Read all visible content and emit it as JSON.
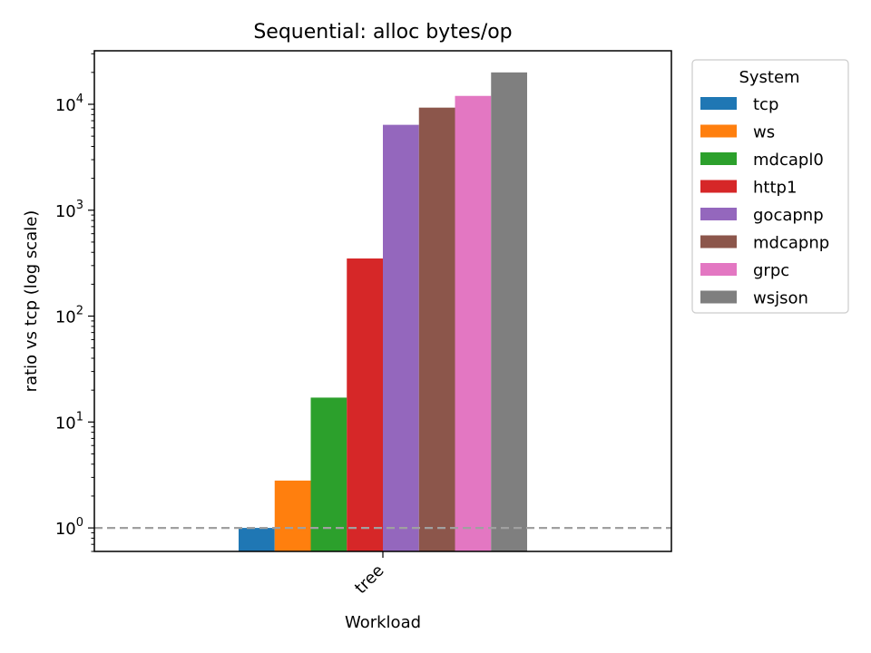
{
  "chart_data": {
    "type": "bar",
    "title": "Sequential: alloc bytes/op",
    "xlabel": "Workload",
    "ylabel": "ratio vs tcp (log scale)",
    "yscale": "log",
    "ylim": [
      0.6,
      32000
    ],
    "categories": [
      "tree"
    ],
    "reference_line": {
      "y": 1,
      "style": "dashed",
      "color": "#a0a0a0"
    },
    "legend": {
      "title": "System",
      "placement": "outside-right-top"
    },
    "y_ticks": [
      {
        "value": 1,
        "base": "10",
        "exp": "0"
      },
      {
        "value": 10,
        "base": "10",
        "exp": "1"
      },
      {
        "value": 100,
        "base": "10",
        "exp": "2"
      },
      {
        "value": 1000,
        "base": "10",
        "exp": "3"
      },
      {
        "value": 10000,
        "base": "10",
        "exp": "4"
      }
    ],
    "series": [
      {
        "name": "tcp",
        "color": "#1f77b4",
        "values": [
          1.0
        ]
      },
      {
        "name": "ws",
        "color": "#ff7f0e",
        "values": [
          2.8
        ]
      },
      {
        "name": "mdcapl0",
        "color": "#2ca02c",
        "values": [
          17
        ]
      },
      {
        "name": "http1",
        "color": "#d62728",
        "values": [
          350
        ]
      },
      {
        "name": "gocapnp",
        "color": "#9467bd",
        "values": [
          6400
        ]
      },
      {
        "name": "mdcapnp",
        "color": "#8c564b",
        "values": [
          9300
        ]
      },
      {
        "name": "grpc",
        "color": "#e377c2",
        "values": [
          12000
        ]
      },
      {
        "name": "wsjson",
        "color": "#7f7f7f",
        "values": [
          20000
        ]
      }
    ]
  }
}
